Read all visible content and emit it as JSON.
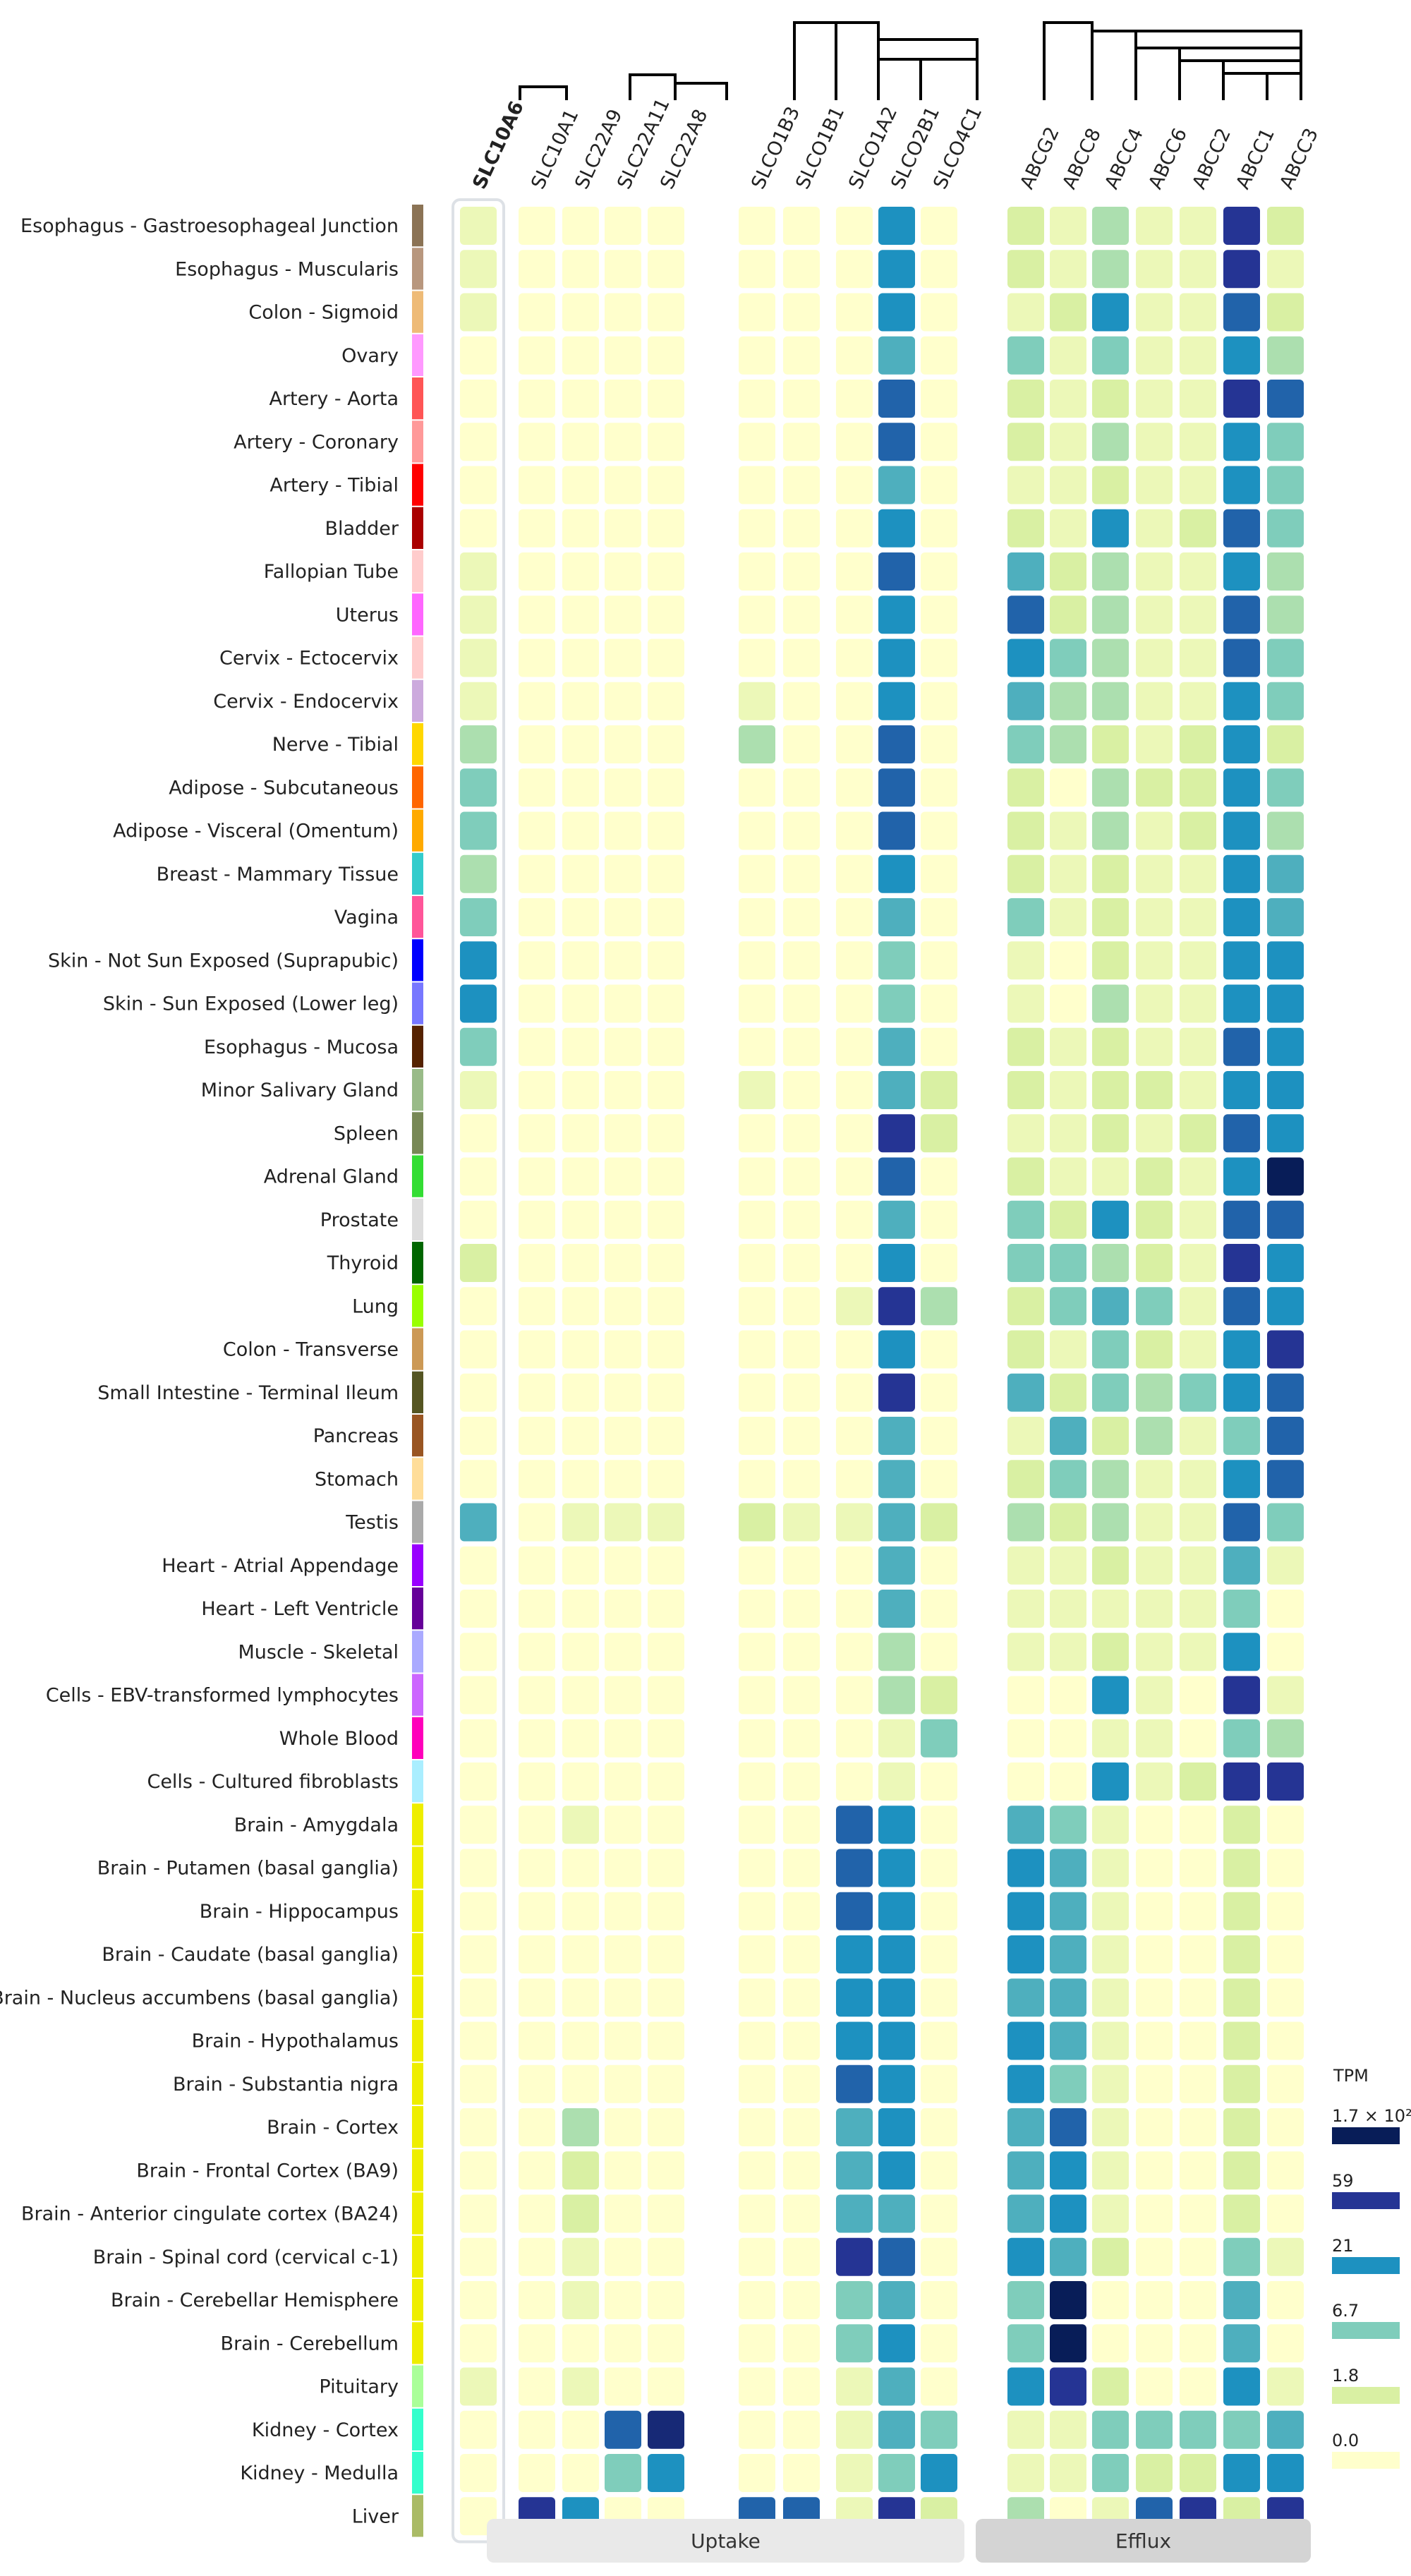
{
  "chart_data": {
    "type": "heatmap",
    "legend_title": "TPM",
    "legend_levels": [
      {
        "label": "1.7 × 10²",
        "color": "#081d58"
      },
      {
        "label": "59",
        "color": "#253494"
      },
      {
        "label": "21",
        "color": "#1d91c0"
      },
      {
        "label": "6.7",
        "color": "#7fcdbb"
      },
      {
        "label": "1.8",
        "color": "#d9f0a3"
      },
      {
        "label": "0.0",
        "color": "#ffffcc"
      }
    ],
    "groups": [
      {
        "label": "Uptake",
        "genes": [
          "SLC10A1",
          "SLC22A9",
          "SLC22A11",
          "SLC22A8",
          "SLCO1B3",
          "SLCO1B1",
          "SLCO1A2",
          "SLCO2B1",
          "SLCO4C1"
        ]
      },
      {
        "label": "Efflux",
        "genes": [
          "ABCG2",
          "ABCC8",
          "ABCC4",
          "ABCC6",
          "ABCC2",
          "ABCC1",
          "ABCC3"
        ]
      }
    ],
    "highlight_gene": "SLC10A6",
    "genes": [
      "SLC10A6",
      "SLC10A1",
      "SLC22A9",
      "SLC22A11",
      "SLC22A8",
      "SLCO1B3",
      "SLCO1B1",
      "SLCO1A2",
      "SLCO2B1",
      "SLCO4C1",
      "ABCG2",
      "ABCC8",
      "ABCC4",
      "ABCC6",
      "ABCC2",
      "ABCC1",
      "ABCC3"
    ],
    "tissues": [
      "Esophagus - Gastroesophageal Junction",
      "Esophagus - Muscularis",
      "Colon - Sigmoid",
      "Ovary",
      "Artery - Aorta",
      "Artery - Coronary",
      "Artery - Tibial",
      "Bladder",
      "Fallopian Tube",
      "Uterus",
      "Cervix - Ectocervix",
      "Cervix - Endocervix",
      "Nerve - Tibial",
      "Adipose - Subcutaneous",
      "Adipose - Visceral (Omentum)",
      "Breast - Mammary Tissue",
      "Vagina",
      "Skin - Not Sun Exposed (Suprapubic)",
      "Skin - Sun Exposed (Lower leg)",
      "Esophagus - Mucosa",
      "Minor Salivary Gland",
      "Spleen",
      "Adrenal Gland",
      "Prostate",
      "Thyroid",
      "Lung",
      "Colon - Transverse",
      "Small Intestine - Terminal Ileum",
      "Pancreas",
      "Stomach",
      "Testis",
      "Heart - Atrial Appendage",
      "Heart - Left Ventricle",
      "Muscle - Skeletal",
      "Cells - EBV-transformed lymphocytes",
      "Whole Blood",
      "Cells - Cultured fibroblasts",
      "Brain - Amygdala",
      "Brain - Putamen (basal ganglia)",
      "Brain - Hippocampus",
      "Brain - Caudate (basal ganglia)",
      "Brain - Nucleus accumbens (basal ganglia)",
      "Brain - Hypothalamus",
      "Brain - Substantia nigra",
      "Brain - Cortex",
      "Brain - Frontal Cortex (BA9)",
      "Brain - Anterior cingulate cortex (BA24)",
      "Brain - Spinal cord (cervical c-1)",
      "Brain - Cerebellar Hemisphere",
      "Brain - Cerebellum",
      "Pituitary",
      "Kidney - Cortex",
      "Kidney - Medulla",
      "Liver"
    ],
    "tissue_colors": [
      "#8b7355",
      "#b8977e",
      "#eebb77",
      "#ff99ff",
      "#ff5555",
      "#ff9999",
      "#ff0000",
      "#aa0000",
      "#ffcccc",
      "#ff66ff",
      "#ffcccc",
      "#ccaadd",
      "#ffd700",
      "#ff6600",
      "#ffaa00",
      "#33cccc",
      "#ff5599",
      "#0000ff",
      "#7777ff",
      "#552200",
      "#99bb88",
      "#778855",
      "#33dd33",
      "#dddddd",
      "#006600",
      "#99ff00",
      "#cc9955",
      "#555522",
      "#995522",
      "#ffdd99",
      "#aaaaaa",
      "#9900ff",
      "#660099",
      "#aaaaff",
      "#cc66ff",
      "#ff00bb",
      "#aaeeff",
      "#eeee00",
      "#eeee00",
      "#eeee00",
      "#eeee00",
      "#eeee00",
      "#eeee00",
      "#eeee00",
      "#eeee00",
      "#eeee00",
      "#eeee00",
      "#eeee00",
      "#eeee00",
      "#eeee00",
      "#aaff99",
      "#33ffcc",
      "#33ffcc",
      "#aabb66"
    ],
    "level_scale": "0 = 0.0, 1 = 1.8, 2 = 6.7, 3 = 21, 4 = 59, 5 = 1.7 × 10²",
    "levels": [
      [
        0.5,
        0,
        0,
        0,
        0,
        0,
        0,
        0,
        3,
        0,
        1,
        0.5,
        1.5,
        0.5,
        0.5,
        4,
        1
      ],
      [
        0.5,
        0,
        0,
        0,
        0,
        0,
        0,
        0,
        3,
        0,
        1,
        0.5,
        1.5,
        0.5,
        0.5,
        4,
        0.5
      ],
      [
        0.5,
        0,
        0,
        0,
        0,
        0,
        0,
        0,
        3,
        0,
        0.5,
        1,
        3,
        0.5,
        0.5,
        3.5,
        1
      ],
      [
        0,
        0,
        0,
        0,
        0,
        0,
        0,
        0,
        2.5,
        0,
        2,
        0.5,
        2,
        0.5,
        0.5,
        3,
        1.5
      ],
      [
        0,
        0,
        0,
        0,
        0,
        0,
        0,
        0,
        3.5,
        0,
        1,
        0.5,
        1,
        0.5,
        0.5,
        4,
        3.5
      ],
      [
        0,
        0,
        0,
        0,
        0,
        0,
        0,
        0,
        3.5,
        0,
        1,
        0.5,
        1.5,
        0.5,
        0.5,
        3,
        2
      ],
      [
        0,
        0,
        0,
        0,
        0,
        0,
        0,
        0,
        2.5,
        0,
        0.5,
        0.5,
        1,
        0.5,
        0.5,
        3,
        2
      ],
      [
        0,
        0,
        0,
        0,
        0,
        0,
        0,
        0,
        3,
        0,
        1,
        0.5,
        3,
        0.5,
        1,
        3.5,
        2
      ],
      [
        0.5,
        0,
        0,
        0,
        0,
        0,
        0,
        0,
        3.5,
        0,
        2.5,
        1,
        1.5,
        0.5,
        0.5,
        3,
        1.5
      ],
      [
        0.5,
        0,
        0,
        0,
        0,
        0,
        0,
        0,
        3,
        0,
        3.5,
        1,
        1.5,
        0.5,
        0.5,
        3.5,
        1.5
      ],
      [
        0.5,
        0,
        0,
        0,
        0,
        0,
        0,
        0,
        3,
        0,
        3,
        2,
        1.5,
        0.5,
        0.5,
        3.5,
        2
      ],
      [
        0.5,
        0,
        0,
        0,
        0,
        0.5,
        0,
        0,
        3,
        0,
        2.5,
        1.5,
        1.5,
        0.5,
        0.5,
        3,
        2
      ],
      [
        1.5,
        0,
        0,
        0,
        0,
        1.5,
        0,
        0,
        3.5,
        0,
        2,
        1.5,
        1,
        0.5,
        1,
        3,
        1
      ],
      [
        2,
        0,
        0,
        0,
        0,
        0,
        0,
        0,
        3.5,
        0,
        1,
        0,
        1.5,
        1,
        1,
        3,
        2
      ],
      [
        2,
        0,
        0,
        0,
        0,
        0,
        0,
        0,
        3.5,
        0,
        1,
        0.5,
        1.5,
        0.5,
        1,
        3,
        1.5
      ],
      [
        1.5,
        0,
        0,
        0,
        0,
        0,
        0,
        0,
        3,
        0,
        1,
        0.5,
        1,
        0.5,
        0.5,
        3,
        2.5
      ],
      [
        2,
        0,
        0,
        0,
        0,
        0,
        0,
        0,
        2.5,
        0,
        2,
        0.5,
        1,
        0.5,
        0.5,
        3,
        2.5
      ],
      [
        3,
        0,
        0,
        0,
        0,
        0,
        0,
        0,
        2,
        0,
        0.5,
        0,
        1,
        0.5,
        0.5,
        3,
        3
      ],
      [
        3,
        0,
        0,
        0,
        0,
        0,
        0,
        0,
        2,
        0,
        0.5,
        0,
        1.5,
        0.5,
        0.5,
        3,
        3
      ],
      [
        2,
        0,
        0,
        0,
        0,
        0,
        0,
        0,
        2.5,
        0,
        1,
        0.5,
        1,
        0.5,
        0.5,
        3.5,
        3
      ],
      [
        0.5,
        0,
        0,
        0,
        0,
        0.5,
        0,
        0,
        2.5,
        1,
        1,
        0.5,
        1,
        1,
        0.5,
        3,
        3
      ],
      [
        0,
        0,
        0,
        0,
        0,
        0,
        0,
        0,
        4,
        1,
        0.5,
        0.5,
        1,
        0.5,
        1,
        3.5,
        3
      ],
      [
        0,
        0,
        0,
        0,
        0,
        0,
        0,
        0,
        3.5,
        0,
        1,
        0.5,
        0.5,
        1,
        0.5,
        3,
        5
      ],
      [
        0,
        0,
        0,
        0,
        0,
        0,
        0,
        0,
        2.5,
        0,
        2,
        1,
        3,
        1,
        0.5,
        3.5,
        3.5
      ],
      [
        1,
        0,
        0,
        0,
        0,
        0,
        0,
        0,
        3,
        0,
        2,
        2,
        1.5,
        1,
        0.5,
        4,
        3
      ],
      [
        0,
        0,
        0,
        0,
        0,
        0,
        0,
        0.5,
        4,
        1.5,
        1,
        2,
        2.5,
        2,
        0.5,
        3.5,
        3
      ],
      [
        0,
        0,
        0,
        0,
        0,
        0,
        0,
        0,
        3,
        0,
        1,
        0.5,
        2,
        1,
        0.5,
        3,
        4
      ],
      [
        0,
        0,
        0,
        0,
        0,
        0,
        0,
        0,
        4,
        0,
        2.5,
        1,
        2,
        1.5,
        2,
        3,
        3.5
      ],
      [
        0,
        0,
        0,
        0,
        0,
        0,
        0,
        0,
        2.5,
        0,
        0.5,
        2.5,
        1,
        1.5,
        0.5,
        2,
        3.5
      ],
      [
        0,
        0,
        0,
        0,
        0,
        0,
        0,
        0,
        2.5,
        0,
        1,
        2,
        1.5,
        0.5,
        0.5,
        3,
        3.5
      ],
      [
        2.5,
        0,
        0.5,
        0.5,
        0.5,
        1,
        0.5,
        0.5,
        2.5,
        1,
        1.5,
        1,
        1.5,
        0.5,
        0.5,
        3.5,
        2
      ],
      [
        0,
        0,
        0,
        0,
        0,
        0,
        0,
        0,
        2.5,
        0,
        0.5,
        0.5,
        1,
        0.5,
        0.5,
        2.5,
        0.5
      ],
      [
        0,
        0,
        0,
        0,
        0,
        0,
        0,
        0,
        2.5,
        0,
        0.5,
        0.5,
        0.5,
        0.5,
        0.5,
        2,
        0
      ],
      [
        0,
        0,
        0,
        0,
        0,
        0,
        0,
        0,
        1.5,
        0,
        0.5,
        0.5,
        1,
        0.5,
        0.5,
        3,
        0
      ],
      [
        0,
        0,
        0,
        0,
        0,
        0,
        0,
        0,
        1.5,
        1,
        0,
        0,
        3,
        0.5,
        0,
        4,
        0.5
      ],
      [
        0,
        0,
        0,
        0,
        0,
        0,
        0,
        0,
        0.5,
        2,
        0,
        0,
        0.5,
        0.5,
        0,
        2,
        1.5
      ],
      [
        0,
        0,
        0,
        0,
        0,
        0,
        0,
        0,
        0.5,
        0,
        0,
        0,
        3,
        0.5,
        1,
        4,
        4
      ],
      [
        0,
        0,
        0.5,
        0,
        0,
        0,
        0,
        3.5,
        3,
        0,
        2.5,
        2,
        0.5,
        0,
        0,
        1,
        0
      ],
      [
        0,
        0,
        0,
        0,
        0,
        0,
        0,
        3.5,
        3,
        0,
        3,
        2.5,
        0.5,
        0,
        0,
        1,
        0
      ],
      [
        0,
        0,
        0,
        0,
        0,
        0,
        0,
        3.5,
        3,
        0,
        3,
        2.5,
        0.5,
        0,
        0,
        1,
        0
      ],
      [
        0,
        0,
        0,
        0,
        0,
        0,
        0,
        3,
        3,
        0,
        3,
        2.5,
        0.5,
        0,
        0,
        1,
        0
      ],
      [
        0,
        0,
        0,
        0,
        0,
        0,
        0,
        3,
        3,
        0,
        2.5,
        2.5,
        0.5,
        0,
        0,
        1,
        0
      ],
      [
        0,
        0,
        0,
        0,
        0,
        0,
        0,
        3,
        3,
        0,
        3,
        2.5,
        0.5,
        0,
        0,
        1,
        0
      ],
      [
        0,
        0,
        0,
        0,
        0,
        0,
        0,
        3.5,
        3,
        0,
        3,
        2,
        0.5,
        0,
        0,
        1,
        0
      ],
      [
        0,
        0,
        1.5,
        0,
        0,
        0,
        0,
        2.5,
        3,
        0,
        2.5,
        3.5,
        0.5,
        0,
        0,
        1,
        0
      ],
      [
        0,
        0,
        1,
        0,
        0,
        0,
        0,
        2.5,
        3,
        0,
        2.5,
        3,
        0.5,
        0,
        0,
        1,
        0
      ],
      [
        0,
        0,
        1,
        0,
        0,
        0,
        0,
        2.5,
        2.5,
        0,
        2.5,
        3,
        0.5,
        0,
        0,
        1,
        0
      ],
      [
        0,
        0,
        0.5,
        0,
        0,
        0,
        0,
        4,
        3.5,
        0,
        3,
        2.5,
        1,
        0,
        0,
        2,
        0.5
      ],
      [
        0,
        0,
        0.5,
        0,
        0,
        0,
        0,
        2,
        2.5,
        0,
        2,
        5,
        0,
        0,
        0,
        2.5,
        0
      ],
      [
        0,
        0,
        0,
        0,
        0,
        0,
        0,
        2,
        3,
        0,
        2,
        5,
        0,
        0,
        0,
        2.5,
        0
      ],
      [
        0.5,
        0,
        0.5,
        0,
        0,
        0,
        0,
        0.5,
        2.5,
        0,
        3,
        4,
        1,
        0,
        0,
        3,
        0.5
      ],
      [
        0,
        0,
        0,
        3.5,
        4.5,
        0,
        0,
        0.5,
        2.5,
        2,
        0.5,
        0.5,
        2,
        2,
        2,
        2,
        2.5
      ],
      [
        0,
        0,
        0,
        2,
        3,
        0,
        0,
        0.5,
        2,
        3,
        0.5,
        0.5,
        2,
        1,
        1,
        3,
        3
      ],
      [
        0,
        4,
        3,
        0,
        0,
        3.5,
        3.5,
        0.5,
        4,
        1,
        1.5,
        0,
        0.5,
        3.5,
        4,
        1,
        4
      ]
    ]
  }
}
